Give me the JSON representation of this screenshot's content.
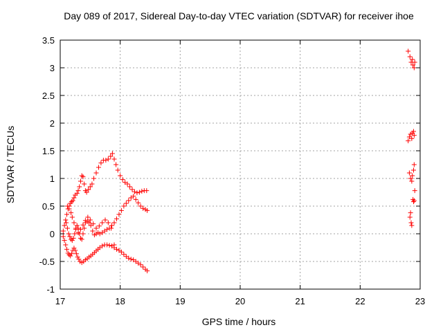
{
  "chart_data": {
    "type": "scatter",
    "title": "Day 089 of 2017, Sidereal Day-to-day VTEC variation (SDTVAR) for receiver ihoe",
    "xlabel": "GPS time / hours",
    "ylabel": "SDTVAR / TECUs",
    "xlim": [
      17,
      23
    ],
    "ylim": [
      -1,
      3.5
    ],
    "xticks": [
      17,
      18,
      19,
      20,
      21,
      22,
      23
    ],
    "xtick_labels": [
      "17",
      "18",
      "19",
      "20",
      "21",
      "22",
      "23"
    ],
    "yticks": [
      -1,
      -0.5,
      0,
      0.5,
      1,
      1.5,
      2,
      2.5,
      3,
      3.5
    ],
    "ytick_labels": [
      "-1",
      "-0.5",
      "0",
      "0.5",
      "1",
      "1.5",
      "2",
      "2.5",
      "3",
      "3.5"
    ],
    "grid": true,
    "marker": "+",
    "color": "#ff0000",
    "series": [
      {
        "points": [
          [
            17.05,
            -0.05
          ],
          [
            17.07,
            -0.12
          ],
          [
            17.09,
            -0.2
          ],
          [
            17.11,
            -0.28
          ],
          [
            17.13,
            -0.35
          ],
          [
            17.15,
            -0.38
          ],
          [
            17.17,
            -0.4
          ],
          [
            17.19,
            -0.36
          ],
          [
            17.21,
            -0.3
          ],
          [
            17.23,
            -0.26
          ],
          [
            17.25,
            -0.3
          ],
          [
            17.27,
            -0.36
          ],
          [
            17.29,
            -0.42
          ],
          [
            17.31,
            -0.46
          ],
          [
            17.33,
            -0.5
          ],
          [
            17.36,
            -0.52
          ],
          [
            17.39,
            -0.5
          ],
          [
            17.42,
            -0.47
          ],
          [
            17.45,
            -0.45
          ],
          [
            17.48,
            -0.42
          ],
          [
            17.51,
            -0.4
          ],
          [
            17.54,
            -0.37
          ],
          [
            17.57,
            -0.34
          ],
          [
            17.6,
            -0.31
          ],
          [
            17.63,
            -0.28
          ],
          [
            17.66,
            -0.25
          ],
          [
            17.7,
            -0.22
          ],
          [
            17.74,
            -0.2
          ],
          [
            17.78,
            -0.2
          ],
          [
            17.82,
            -0.21
          ],
          [
            17.86,
            -0.22
          ],
          [
            17.9,
            -0.25
          ],
          [
            17.94,
            -0.28
          ],
          [
            17.98,
            -0.3
          ],
          [
            18.02,
            -0.33
          ],
          [
            18.06,
            -0.37
          ],
          [
            18.1,
            -0.41
          ],
          [
            18.14,
            -0.44
          ],
          [
            18.18,
            -0.46
          ],
          [
            18.22,
            -0.47
          ],
          [
            18.26,
            -0.5
          ],
          [
            18.3,
            -0.53
          ],
          [
            18.34,
            -0.56
          ],
          [
            18.38,
            -0.6
          ],
          [
            18.42,
            -0.64
          ],
          [
            18.45,
            -0.67
          ]
        ]
      },
      {
        "points": [
          [
            17.05,
            0.05
          ],
          [
            17.07,
            0.15
          ],
          [
            17.09,
            0.25
          ],
          [
            17.11,
            0.35
          ],
          [
            17.13,
            0.45
          ],
          [
            17.15,
            0.5
          ],
          [
            17.17,
            0.55
          ],
          [
            17.19,
            0.58
          ],
          [
            17.21,
            0.6
          ],
          [
            17.23,
            0.65
          ],
          [
            17.25,
            0.7
          ],
          [
            17.28,
            0.73
          ],
          [
            17.3,
            0.78
          ],
          [
            17.32,
            0.85
          ],
          [
            17.34,
            0.95
          ],
          [
            17.36,
            1.05
          ],
          [
            17.38,
            1.03
          ],
          [
            17.4,
            0.9
          ],
          [
            17.42,
            0.78
          ],
          [
            17.44,
            0.75
          ],
          [
            17.47,
            0.8
          ],
          [
            17.5,
            0.85
          ],
          [
            17.53,
            0.9
          ],
          [
            17.56,
            1.0
          ],
          [
            17.6,
            1.1
          ],
          [
            17.64,
            1.2
          ],
          [
            17.68,
            1.28
          ],
          [
            17.72,
            1.33
          ],
          [
            17.76,
            1.33
          ],
          [
            17.8,
            1.35
          ],
          [
            17.84,
            1.4
          ],
          [
            17.87,
            1.45
          ],
          [
            17.9,
            1.35
          ],
          [
            17.93,
            1.25
          ],
          [
            17.96,
            1.15
          ],
          [
            18.0,
            1.05
          ],
          [
            18.04,
            0.98
          ],
          [
            18.08,
            0.93
          ],
          [
            18.12,
            0.9
          ],
          [
            18.16,
            0.85
          ],
          [
            18.2,
            0.8
          ],
          [
            18.24,
            0.76
          ],
          [
            18.28,
            0.74
          ],
          [
            18.32,
            0.75
          ],
          [
            18.36,
            0.77
          ],
          [
            18.4,
            0.78
          ],
          [
            18.44,
            0.78
          ]
        ]
      },
      {
        "points": [
          [
            17.1,
            0.2
          ],
          [
            17.12,
            0.1
          ],
          [
            17.14,
            0.0
          ],
          [
            17.16,
            -0.05
          ],
          [
            17.18,
            -0.1
          ],
          [
            17.2,
            -0.12
          ],
          [
            17.22,
            -0.08
          ],
          [
            17.24,
            0.0
          ],
          [
            17.26,
            0.08
          ],
          [
            17.28,
            0.15
          ],
          [
            17.3,
            0.1
          ],
          [
            17.32,
            0.0
          ],
          [
            17.34,
            -0.08
          ],
          [
            17.36,
            -0.1
          ],
          [
            17.38,
            0.0
          ],
          [
            17.4,
            0.1
          ],
          [
            17.42,
            0.2
          ],
          [
            17.45,
            0.22
          ],
          [
            17.48,
            0.2
          ],
          [
            17.51,
            0.15
          ],
          [
            17.54,
            0.05
          ],
          [
            17.57,
            -0.02
          ],
          [
            17.6,
            0.0
          ],
          [
            17.63,
            0.02
          ],
          [
            17.66,
            0.0
          ],
          [
            17.7,
            0.02
          ],
          [
            17.74,
            0.05
          ],
          [
            17.78,
            0.08
          ],
          [
            17.82,
            0.1
          ],
          [
            17.86,
            0.15
          ],
          [
            17.9,
            0.2
          ],
          [
            17.94,
            0.27
          ],
          [
            17.98,
            0.35
          ],
          [
            18.02,
            0.42
          ],
          [
            18.06,
            0.5
          ],
          [
            18.1,
            0.55
          ],
          [
            18.14,
            0.6
          ],
          [
            18.18,
            0.65
          ],
          [
            18.22,
            0.68
          ],
          [
            18.26,
            0.62
          ],
          [
            18.3,
            0.56
          ],
          [
            18.34,
            0.5
          ],
          [
            18.38,
            0.46
          ],
          [
            18.42,
            0.44
          ],
          [
            18.45,
            0.42
          ]
        ]
      },
      {
        "points": [
          [
            17.12,
            0.5
          ],
          [
            17.15,
            0.45
          ],
          [
            17.18,
            0.38
          ],
          [
            17.2,
            0.3
          ],
          [
            17.23,
            0.2
          ],
          [
            17.26,
            0.1
          ],
          [
            17.3,
            0.02
          ],
          [
            17.34,
            0.08
          ],
          [
            17.38,
            0.16
          ],
          [
            17.42,
            0.24
          ],
          [
            17.46,
            0.3
          ],
          [
            17.5,
            0.25
          ],
          [
            17.55,
            0.18
          ],
          [
            17.6,
            0.1
          ],
          [
            17.65,
            0.14
          ],
          [
            17.7,
            0.2
          ],
          [
            17.75,
            0.25
          ],
          [
            17.8,
            0.2
          ],
          [
            17.85,
            0.1
          ],
          [
            17.9,
            -0.2
          ]
        ]
      },
      {
        "points": [
          [
            22.8,
            3.3
          ],
          [
            22.83,
            3.2
          ],
          [
            22.85,
            3.1
          ],
          [
            22.87,
            3.15
          ],
          [
            22.88,
            3.05
          ],
          [
            22.9,
            3.0
          ],
          [
            22.91,
            3.1
          ],
          [
            22.8,
            1.68
          ],
          [
            22.82,
            1.75
          ],
          [
            22.84,
            1.8
          ],
          [
            22.86,
            1.72
          ],
          [
            22.87,
            1.82
          ],
          [
            22.89,
            1.85
          ],
          [
            22.9,
            1.78
          ],
          [
            22.82,
            1.1
          ],
          [
            22.84,
            1.0
          ],
          [
            22.86,
            0.95
          ],
          [
            22.87,
            1.05
          ],
          [
            22.89,
            1.15
          ],
          [
            22.9,
            1.25
          ],
          [
            22.91,
            0.78
          ],
          [
            22.88,
            0.62
          ],
          [
            22.89,
            0.58
          ],
          [
            22.9,
            0.6
          ],
          [
            22.83,
            0.3
          ],
          [
            22.85,
            0.2
          ],
          [
            22.86,
            0.15
          ],
          [
            22.84,
            0.38
          ]
        ]
      }
    ]
  }
}
